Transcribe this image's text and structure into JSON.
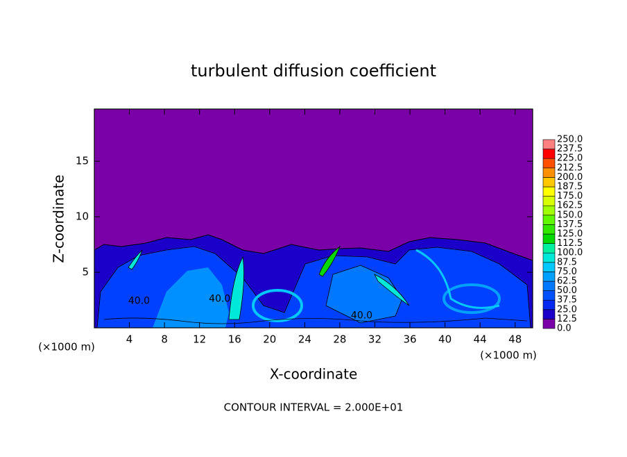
{
  "chart_data": {
    "type": "contour",
    "title": "turbulent diffusion coefficient",
    "xlabel": "X-coordinate",
    "ylabel": "Z-coordinate",
    "unit_labels": [
      "(×1000 m)",
      "(×1000 m)"
    ],
    "footer": "CONTOUR INTERVAL = 2.000E+01",
    "xlim": [
      0,
      50
    ],
    "ylim": [
      0,
      19.7
    ],
    "xticks": [
      4,
      8,
      12,
      16,
      20,
      24,
      28,
      32,
      36,
      40,
      44,
      48
    ],
    "yticks": [
      5,
      10,
      15
    ],
    "annotations": [
      {
        "text": "40.0",
        "x": 5.1,
        "y": 2.4
      },
      {
        "text": "40.0",
        "x": 14.3,
        "y": 2.6
      },
      {
        "text": "40.0",
        "x": 30.5,
        "y": 1.1
      }
    ],
    "levels": [
      {
        "value": 0,
        "label": "0.0"
      },
      12.5,
      {
        "value": 25,
        "label": "25.0"
      },
      37.5,
      {
        "value": 50,
        "label": "50.0"
      },
      62.5,
      {
        "value": 75,
        "label": "75.0"
      },
      87.5,
      {
        "value": 100,
        "label": "100.0"
      },
      112.5,
      {
        "value": 125,
        "label": "125.0"
      },
      137.5,
      {
        "value": 150,
        "label": "150.0"
      },
      162.5,
      {
        "value": 175,
        "label": "175.0"
      },
      187.5,
      {
        "value": 200,
        "label": "200.0"
      },
      212.5,
      {
        "value": 225,
        "label": "225.0"
      },
      237.5,
      {
        "value": 250,
        "label": "250.0"
      }
    ],
    "colors": [
      "#7a00a8",
      "#1a00c8",
      "#0028f0",
      "#0050ff",
      "#0078ff",
      "#00a0ff",
      "#00c8ff",
      "#00e8d8",
      "#00f0a0",
      "#00d800",
      "#30e800",
      "#60f800",
      "#a0ff00",
      "#d8ff00",
      "#ffff00",
      "#ffc800",
      "#ff9000",
      "#ff5000",
      "#ff0000",
      "#ff8080"
    ]
  }
}
